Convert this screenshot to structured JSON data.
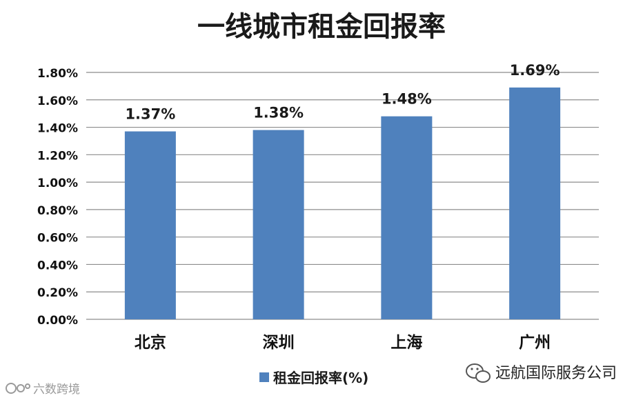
{
  "chart_data": {
    "type": "bar",
    "title": "一线城市租金回报率",
    "categories": [
      "北京",
      "深圳",
      "上海",
      "广州"
    ],
    "series": [
      {
        "name": "租金回报率(%)",
        "values": [
          1.37,
          1.38,
          1.48,
          1.69
        ]
      }
    ],
    "data_labels": [
      "1.37%",
      "1.38%",
      "1.48%",
      "1.69%"
    ],
    "y_ticks": [
      "0.00%",
      "0.20%",
      "0.40%",
      "0.60%",
      "0.80%",
      "1.00%",
      "1.20%",
      "1.40%",
      "1.60%",
      "1.80%"
    ],
    "ylim": [
      0,
      1.8
    ],
    "grid": true,
    "legend_position": "bottom",
    "bar_color": "#4f81bd",
    "grid_color": "#8c8c8c"
  },
  "footer": {
    "left_watermark": "六数跨境",
    "right_account": "远航国际服务公司"
  },
  "icons": {
    "left_logo": "logo-icon",
    "right_logo": "wechat-icon"
  }
}
